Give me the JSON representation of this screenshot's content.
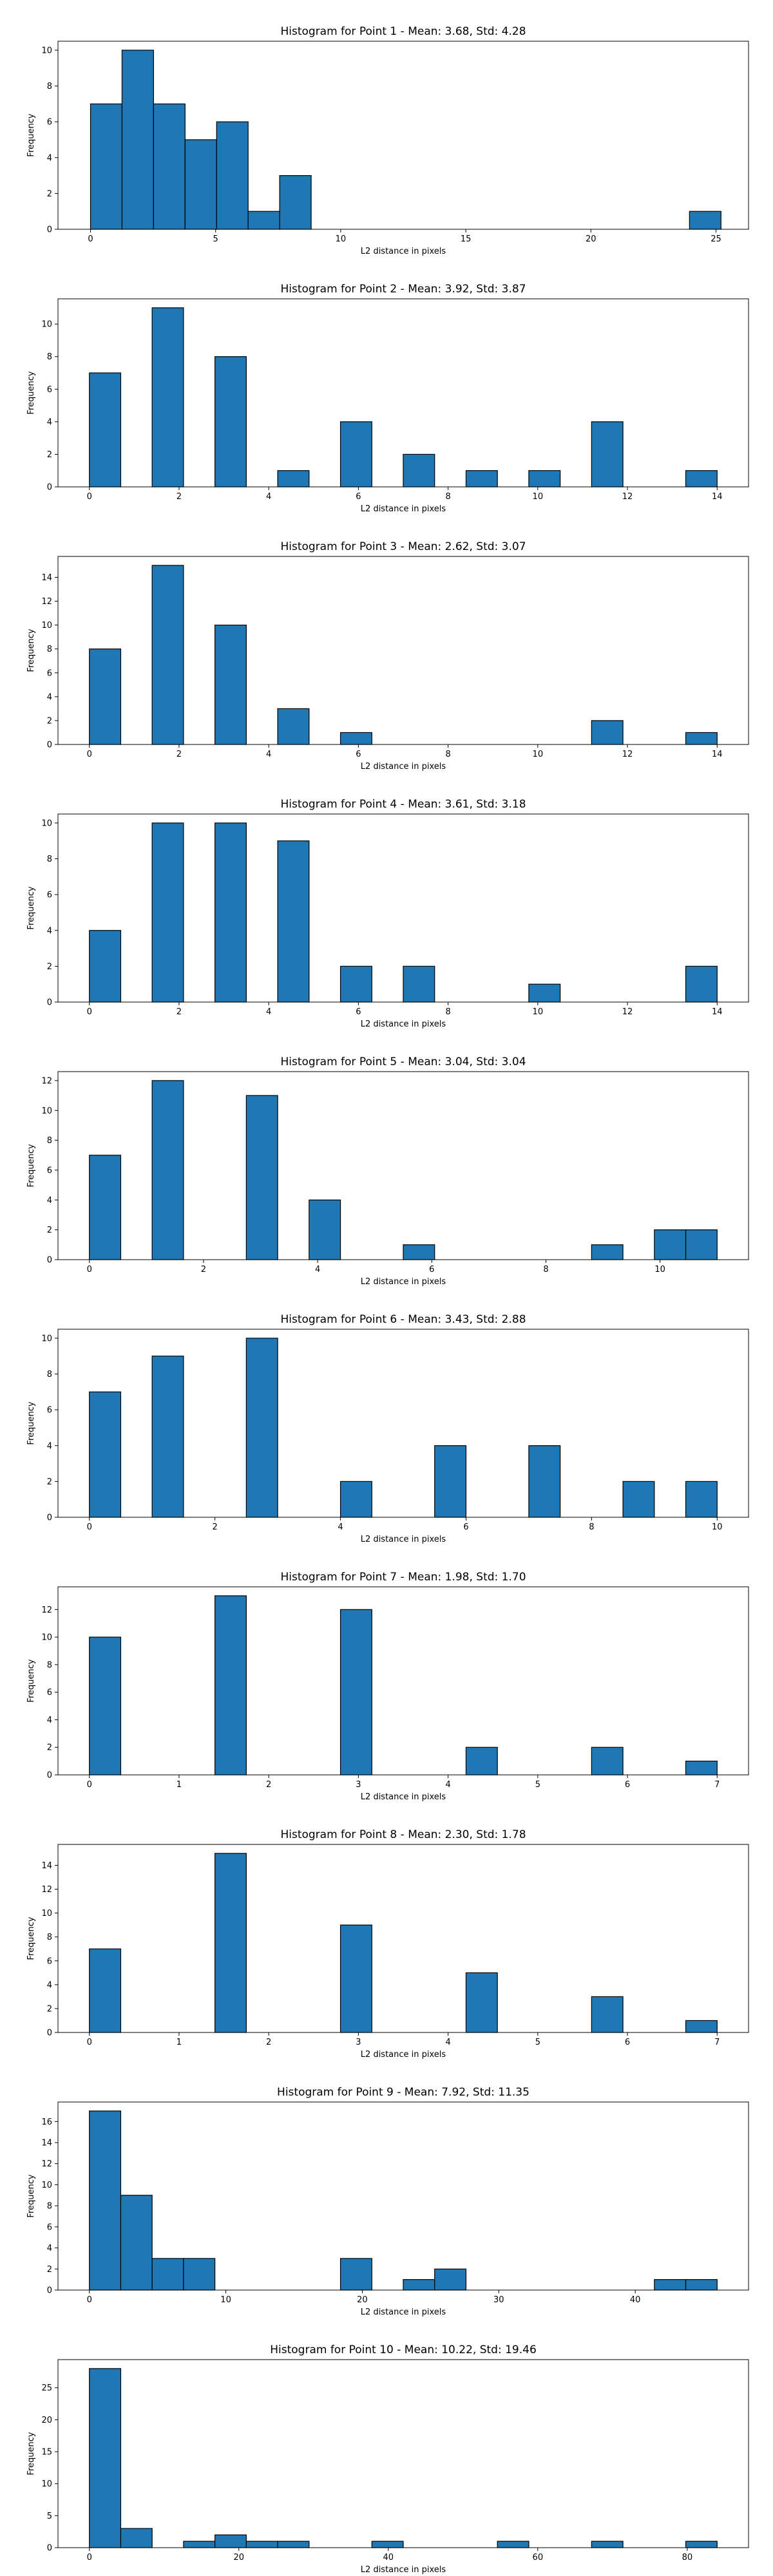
{
  "chart_data": [
    {
      "type": "bar",
      "title": "Histogram for Point 1 - Mean: 3.68, Std: 4.28",
      "xlabel": "L2 distance in pixels",
      "ylabel": "Frequency",
      "xlim": [
        -1.3,
        26.3
      ],
      "ylim": [
        0,
        10.5
      ],
      "xticks": [
        0,
        5,
        10,
        15,
        20,
        25
      ],
      "yticks": [
        0,
        2,
        4,
        6,
        8,
        10
      ],
      "bins": [
        {
          "x0": 0.0,
          "x1": 1.26,
          "count": 7
        },
        {
          "x0": 1.26,
          "x1": 2.52,
          "count": 10
        },
        {
          "x0": 2.52,
          "x1": 3.78,
          "count": 7
        },
        {
          "x0": 3.78,
          "x1": 5.04,
          "count": 5
        },
        {
          "x0": 5.04,
          "x1": 6.3,
          "count": 6
        },
        {
          "x0": 6.3,
          "x1": 7.56,
          "count": 1
        },
        {
          "x0": 7.56,
          "x1": 8.82,
          "count": 3
        },
        {
          "x0": 23.94,
          "x1": 25.2,
          "count": 1
        }
      ]
    },
    {
      "type": "bar",
      "title": "Histogram for Point 2 - Mean: 3.92, Std: 3.87",
      "xlabel": "L2 distance in pixels",
      "ylabel": "Frequency",
      "xlim": [
        -0.7,
        14.7
      ],
      "ylim": [
        0,
        11.55
      ],
      "xticks": [
        0,
        2,
        4,
        6,
        8,
        10,
        12,
        14
      ],
      "yticks": [
        0,
        2,
        4,
        6,
        8,
        10
      ],
      "bins": [
        {
          "x0": 0.0,
          "x1": 0.7,
          "count": 7
        },
        {
          "x0": 1.4,
          "x1": 2.1,
          "count": 11
        },
        {
          "x0": 2.8,
          "x1": 3.5,
          "count": 8
        },
        {
          "x0": 4.2,
          "x1": 4.9,
          "count": 1
        },
        {
          "x0": 5.6,
          "x1": 6.3,
          "count": 4
        },
        {
          "x0": 7.0,
          "x1": 7.7,
          "count": 2
        },
        {
          "x0": 8.4,
          "x1": 9.1,
          "count": 1
        },
        {
          "x0": 9.8,
          "x1": 10.5,
          "count": 1
        },
        {
          "x0": 11.2,
          "x1": 11.9,
          "count": 4
        },
        {
          "x0": 13.3,
          "x1": 14.0,
          "count": 1
        }
      ]
    },
    {
      "type": "bar",
      "title": "Histogram for Point 3 - Mean: 2.62, Std: 3.07",
      "xlabel": "L2 distance in pixels",
      "ylabel": "Frequency",
      "xlim": [
        -0.7,
        14.7
      ],
      "ylim": [
        0,
        15.75
      ],
      "xticks": [
        0,
        2,
        4,
        6,
        8,
        10,
        12,
        14
      ],
      "yticks": [
        0,
        2,
        4,
        6,
        8,
        10,
        12,
        14
      ],
      "bins": [
        {
          "x0": 0.0,
          "x1": 0.7,
          "count": 8
        },
        {
          "x0": 1.4,
          "x1": 2.1,
          "count": 15
        },
        {
          "x0": 2.8,
          "x1": 3.5,
          "count": 10
        },
        {
          "x0": 4.2,
          "x1": 4.9,
          "count": 3
        },
        {
          "x0": 5.6,
          "x1": 6.3,
          "count": 1
        },
        {
          "x0": 11.2,
          "x1": 11.9,
          "count": 2
        },
        {
          "x0": 13.3,
          "x1": 14.0,
          "count": 1
        }
      ]
    },
    {
      "type": "bar",
      "title": "Histogram for Point 4 - Mean: 3.61, Std: 3.18",
      "xlabel": "L2 distance in pixels",
      "ylabel": "Frequency",
      "xlim": [
        -0.7,
        14.7
      ],
      "ylim": [
        0,
        10.5
      ],
      "xticks": [
        0,
        2,
        4,
        6,
        8,
        10,
        12,
        14
      ],
      "yticks": [
        0,
        2,
        4,
        6,
        8,
        10
      ],
      "bins": [
        {
          "x0": 0.0,
          "x1": 0.7,
          "count": 4
        },
        {
          "x0": 1.4,
          "x1": 2.1,
          "count": 10
        },
        {
          "x0": 2.8,
          "x1": 3.5,
          "count": 10
        },
        {
          "x0": 4.2,
          "x1": 4.9,
          "count": 9
        },
        {
          "x0": 5.6,
          "x1": 6.3,
          "count": 2
        },
        {
          "x0": 7.0,
          "x1": 7.7,
          "count": 2
        },
        {
          "x0": 9.8,
          "x1": 10.5,
          "count": 1
        },
        {
          "x0": 13.3,
          "x1": 14.0,
          "count": 2
        }
      ]
    },
    {
      "type": "bar",
      "title": "Histogram for Point 5 - Mean: 3.04, Std: 3.04",
      "xlabel": "L2 distance in pixels",
      "ylabel": "Frequency",
      "xlim": [
        -0.55,
        11.55
      ],
      "ylim": [
        0,
        12.6
      ],
      "xticks": [
        0,
        2,
        4,
        6,
        8,
        10
      ],
      "yticks": [
        0,
        2,
        4,
        6,
        8,
        10,
        12
      ],
      "bins": [
        {
          "x0": 0.0,
          "x1": 0.55,
          "count": 7
        },
        {
          "x0": 1.1,
          "x1": 1.65,
          "count": 12
        },
        {
          "x0": 2.75,
          "x1": 3.3,
          "count": 11
        },
        {
          "x0": 3.85,
          "x1": 4.4,
          "count": 4
        },
        {
          "x0": 5.5,
          "x1": 6.05,
          "count": 1
        },
        {
          "x0": 8.8,
          "x1": 9.35,
          "count": 1
        },
        {
          "x0": 9.9,
          "x1": 10.45,
          "count": 2
        },
        {
          "x0": 10.45,
          "x1": 11.0,
          "count": 2
        }
      ]
    },
    {
      "type": "bar",
      "title": "Histogram for Point 6 - Mean: 3.43, Std: 2.88",
      "xlabel": "L2 distance in pixels",
      "ylabel": "Frequency",
      "xlim": [
        -0.5,
        10.5
      ],
      "ylim": [
        0,
        10.5
      ],
      "xticks": [
        0,
        2,
        4,
        6,
        8,
        10
      ],
      "yticks": [
        0,
        2,
        4,
        6,
        8,
        10
      ],
      "bins": [
        {
          "x0": 0.0,
          "x1": 0.5,
          "count": 7
        },
        {
          "x0": 1.0,
          "x1": 1.5,
          "count": 9
        },
        {
          "x0": 2.5,
          "x1": 3.0,
          "count": 10
        },
        {
          "x0": 4.0,
          "x1": 4.5,
          "count": 2
        },
        {
          "x0": 5.5,
          "x1": 6.0,
          "count": 4
        },
        {
          "x0": 7.0,
          "x1": 7.5,
          "count": 4
        },
        {
          "x0": 8.5,
          "x1": 9.0,
          "count": 2
        },
        {
          "x0": 9.5,
          "x1": 10.0,
          "count": 2
        }
      ]
    },
    {
      "type": "bar",
      "title": "Histogram for Point 7 - Mean: 1.98, Std: 1.70",
      "xlabel": "L2 distance in pixels",
      "ylabel": "Frequency",
      "xlim": [
        -0.35,
        7.35
      ],
      "ylim": [
        0,
        13.65
      ],
      "xticks": [
        0,
        1,
        2,
        3,
        4,
        5,
        6,
        7
      ],
      "yticks": [
        0,
        2,
        4,
        6,
        8,
        10,
        12
      ],
      "bins": [
        {
          "x0": 0.0,
          "x1": 0.35,
          "count": 10
        },
        {
          "x0": 1.4,
          "x1": 1.75,
          "count": 13
        },
        {
          "x0": 2.8,
          "x1": 3.15,
          "count": 12
        },
        {
          "x0": 4.2,
          "x1": 4.55,
          "count": 2
        },
        {
          "x0": 5.6,
          "x1": 5.95,
          "count": 2
        },
        {
          "x0": 6.65,
          "x1": 7.0,
          "count": 1
        }
      ]
    },
    {
      "type": "bar",
      "title": "Histogram for Point 8 - Mean: 2.30, Std: 1.78",
      "xlabel": "L2 distance in pixels",
      "ylabel": "Frequency",
      "xlim": [
        -0.35,
        7.35
      ],
      "ylim": [
        0,
        15.75
      ],
      "xticks": [
        0,
        1,
        2,
        3,
        4,
        5,
        6,
        7
      ],
      "yticks": [
        0,
        2,
        4,
        6,
        8,
        10,
        12,
        14
      ],
      "bins": [
        {
          "x0": 0.0,
          "x1": 0.35,
          "count": 7
        },
        {
          "x0": 1.4,
          "x1": 1.75,
          "count": 15
        },
        {
          "x0": 2.8,
          "x1": 3.15,
          "count": 9
        },
        {
          "x0": 4.2,
          "x1": 4.55,
          "count": 5
        },
        {
          "x0": 5.6,
          "x1": 5.95,
          "count": 3
        },
        {
          "x0": 6.65,
          "x1": 7.0,
          "count": 1
        }
      ]
    },
    {
      "type": "bar",
      "title": "Histogram for Point 9 - Mean: 7.92, Std: 11.35",
      "xlabel": "L2 distance in pixels",
      "ylabel": "Frequency",
      "xlim": [
        -2.3,
        48.3
      ],
      "ylim": [
        0,
        17.85
      ],
      "xticks": [
        0,
        10,
        20,
        30,
        40
      ],
      "yticks": [
        0,
        2,
        4,
        6,
        8,
        10,
        12,
        14,
        16
      ],
      "bins": [
        {
          "x0": 0.0,
          "x1": 2.3,
          "count": 17
        },
        {
          "x0": 2.3,
          "x1": 4.6,
          "count": 9
        },
        {
          "x0": 4.6,
          "x1": 6.9,
          "count": 3
        },
        {
          "x0": 6.9,
          "x1": 9.2,
          "count": 3
        },
        {
          "x0": 18.4,
          "x1": 20.7,
          "count": 3
        },
        {
          "x0": 23.0,
          "x1": 25.3,
          "count": 1
        },
        {
          "x0": 25.3,
          "x1": 27.6,
          "count": 2
        },
        {
          "x0": 41.4,
          "x1": 43.7,
          "count": 1
        },
        {
          "x0": 43.7,
          "x1": 46.0,
          "count": 1
        }
      ]
    },
    {
      "type": "bar",
      "title": "Histogram for Point 10 - Mean: 10.22, Std: 19.46",
      "xlabel": "L2 distance in pixels",
      "ylabel": "Frequency",
      "xlim": [
        -4.2,
        88.2
      ],
      "ylim": [
        0,
        29.4
      ],
      "xticks": [
        0,
        20,
        40,
        60,
        80
      ],
      "yticks": [
        0,
        5,
        10,
        15,
        20,
        25
      ],
      "bins": [
        {
          "x0": 0.0,
          "x1": 4.2,
          "count": 28
        },
        {
          "x0": 4.2,
          "x1": 8.4,
          "count": 3
        },
        {
          "x0": 12.6,
          "x1": 16.8,
          "count": 1
        },
        {
          "x0": 16.8,
          "x1": 21.0,
          "count": 2
        },
        {
          "x0": 21.0,
          "x1": 25.2,
          "count": 1
        },
        {
          "x0": 25.2,
          "x1": 29.4,
          "count": 1
        },
        {
          "x0": 37.8,
          "x1": 42.0,
          "count": 1
        },
        {
          "x0": 54.6,
          "x1": 58.8,
          "count": 1
        },
        {
          "x0": 67.2,
          "x1": 71.4,
          "count": 1
        },
        {
          "x0": 79.8,
          "x1": 84.0,
          "count": 1
        }
      ]
    }
  ],
  "colors": {
    "bar_fill": "#1f77b4",
    "bar_edge": "#000000",
    "axis": "#000000",
    "text": "#000000",
    "background": "#ffffff"
  }
}
